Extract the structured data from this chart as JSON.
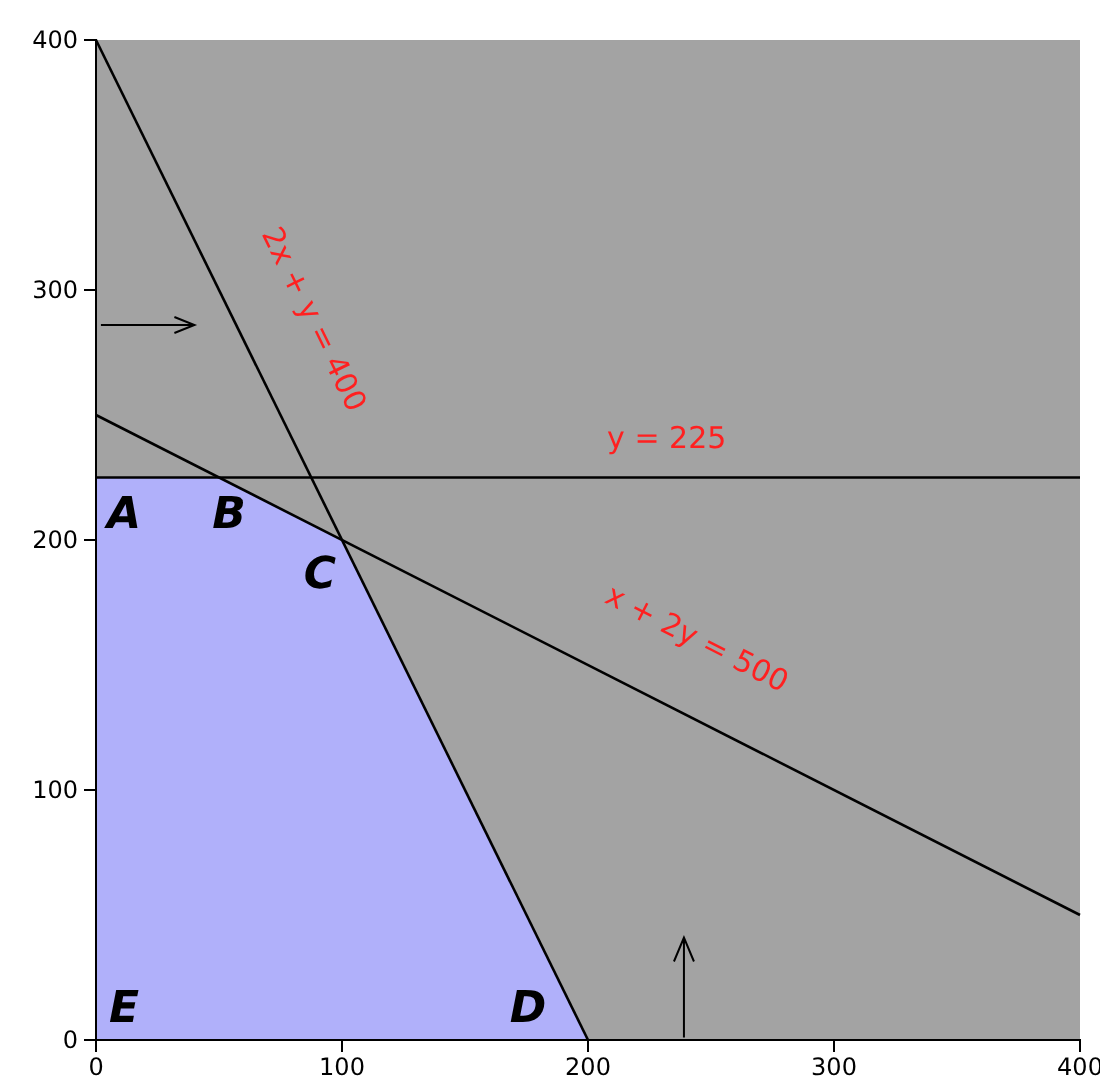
{
  "chart_data": {
    "type": "line",
    "xlim": [
      0,
      400
    ],
    "ylim": [
      0,
      400
    ],
    "xticks": [
      0,
      100,
      200,
      300,
      400
    ],
    "yticks": [
      0,
      100,
      200,
      300,
      400
    ],
    "grid": false,
    "marker": "none",
    "line_style": "solid",
    "series": [
      {
        "type": "area",
        "color": "#b0b0fa",
        "x": [
          0,
          50,
          100,
          200
        ],
        "values": [
          225,
          225,
          200,
          0
        ]
      },
      {
        "color": "#000000",
        "x": [
          0,
          200
        ],
        "values": [
          400,
          0
        ]
      },
      {
        "color": "#000000",
        "x": [
          0,
          400
        ],
        "values": [
          250,
          50
        ]
      },
      {
        "color": "#000000",
        "x": [
          0,
          400
        ],
        "values": [
          225,
          225
        ]
      }
    ],
    "annotations": [
      "2x + y = 400",
      "y = 225",
      "x + 2y = 500",
      {
        "text": "A",
        "x": 0,
        "y": 225
      },
      {
        "text": "B",
        "x": 50,
        "y": 225
      },
      {
        "text": "C",
        "x": 100,
        "y": 200
      },
      {
        "text": "D",
        "x": 200,
        "y": 0
      },
      {
        "text": "E",
        "x": 0,
        "y": 0
      }
    ]
  }
}
